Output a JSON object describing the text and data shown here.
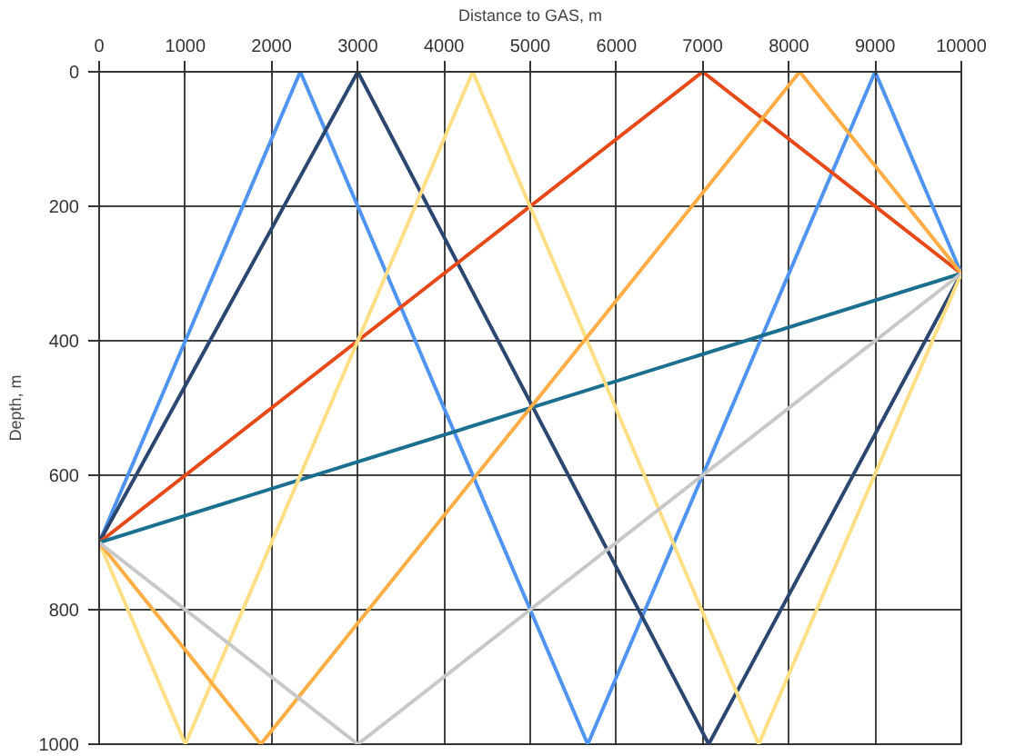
{
  "chart_data": {
    "type": "line",
    "xlabel": "Distance to GAS, m",
    "ylabel": "Depth, m",
    "xlim": [
      0,
      10000
    ],
    "ylim": [
      1000,
      0
    ],
    "xticks": [
      0,
      1000,
      2000,
      3000,
      4000,
      5000,
      6000,
      7000,
      8000,
      9000,
      10000
    ],
    "yticks": [
      0,
      200,
      400,
      600,
      800,
      1000
    ],
    "grid": true,
    "marker": "none",
    "line_style": "solid",
    "series": [
      {
        "color": "#4f94f0",
        "x": [
          0,
          2333,
          5667,
          9000,
          10000
        ],
        "values": [
          700,
          0,
          1000,
          0,
          300
        ]
      },
      {
        "color": "#2b4670",
        "x": [
          0,
          3000,
          7070,
          10000
        ],
        "values": [
          700,
          0,
          1000,
          300
        ]
      },
      {
        "color": "#e64a19",
        "x": [
          0,
          7000,
          10000
        ],
        "values": [
          700,
          0,
          300
        ]
      },
      {
        "color": "#1b6f8f",
        "x": [
          0,
          10000
        ],
        "values": [
          700,
          300
        ]
      },
      {
        "color": "#ffdf85",
        "x": [
          0,
          1000,
          4333,
          7650,
          10000
        ],
        "values": [
          700,
          1000,
          0,
          1000,
          300
        ]
      },
      {
        "color": "#ffad45",
        "x": [
          0,
          1875,
          8125,
          10000
        ],
        "values": [
          700,
          1000,
          0,
          300
        ]
      },
      {
        "color": "#c8c8c8",
        "x": [
          0,
          3000,
          10000
        ],
        "values": [
          700,
          1000,
          300
        ]
      }
    ]
  }
}
